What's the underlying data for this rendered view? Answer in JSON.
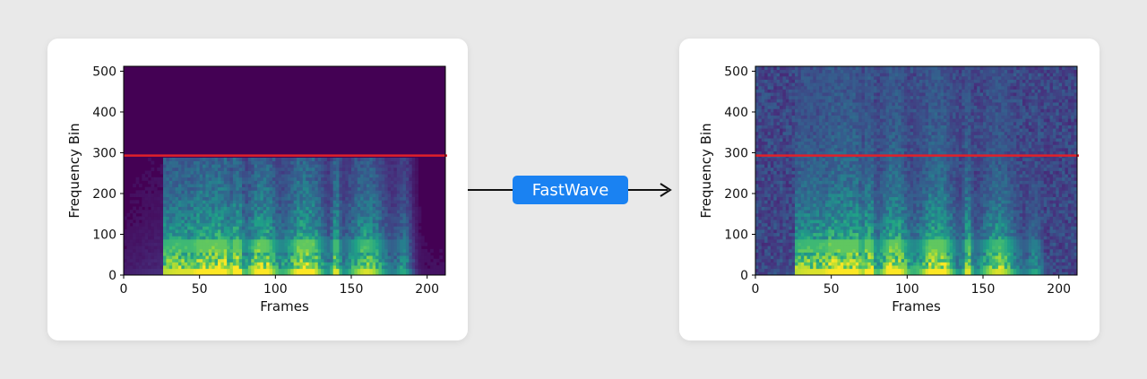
{
  "method_label": "FastWave",
  "colors": {
    "background": "#e9e9e9",
    "badge": "#1a82f2",
    "threshold_line": "#e0202a",
    "colormap": [
      "#440154",
      "#46327e",
      "#365c8d",
      "#277f8e",
      "#1fa187",
      "#4ac16d",
      "#a0da39",
      "#fde725"
    ]
  },
  "chart_data": [
    {
      "type": "heatmap",
      "title": "",
      "xlabel": "Frames",
      "ylabel": "Frequency Bin",
      "xlim": [
        0,
        212
      ],
      "ylim": [
        0,
        512
      ],
      "xticks": [
        "0",
        "50",
        "100",
        "150",
        "200"
      ],
      "yticks": [
        "0",
        "100",
        "200",
        "300",
        "400",
        "500"
      ],
      "threshold_line_y": 293,
      "content_ceiling_bin": 290,
      "description_profile": "band-limited spectrogram; above ~290 is empty"
    },
    {
      "type": "heatmap",
      "title": "",
      "xlabel": "Frames",
      "ylabel": "Frequency Bin",
      "xlim": [
        0,
        212
      ],
      "ylim": [
        0,
        512
      ],
      "xticks": [
        "0",
        "50",
        "100",
        "150",
        "200"
      ],
      "yticks": [
        "0",
        "100",
        "200",
        "300",
        "400",
        "500"
      ],
      "threshold_line_y": 293,
      "content_ceiling_bin": 512,
      "description_profile": "full-band reconstructed spectrogram"
    }
  ]
}
